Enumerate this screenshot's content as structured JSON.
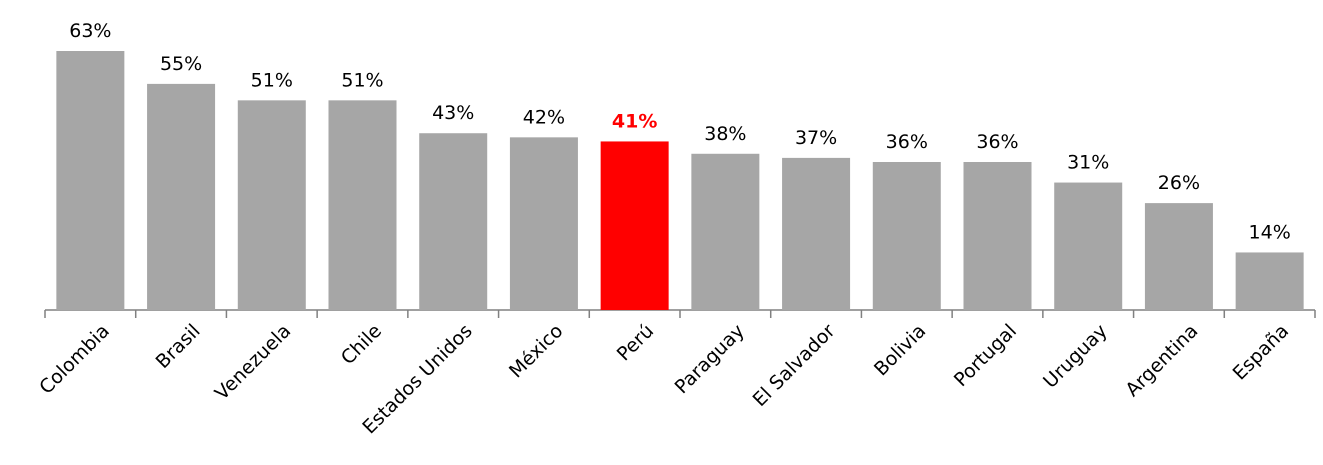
{
  "chart_data": {
    "type": "bar",
    "categories": [
      "Colombia",
      "Brasil",
      "Venezuela",
      "Chile",
      "Estados Unidos",
      "México",
      "Perú",
      "Paraguay",
      "El Salvador",
      "Bolivia",
      "Portugal",
      "Uruguay",
      "Argentina",
      "España"
    ],
    "values": [
      63,
      55,
      51,
      51,
      43,
      42,
      41,
      38,
      37,
      36,
      36,
      31,
      26,
      14
    ],
    "value_labels": [
      "63%",
      "55%",
      "51%",
      "51%",
      "43%",
      "42%",
      "41%",
      "38%",
      "37%",
      "36%",
      "36%",
      "31%",
      "26%",
      "14%"
    ],
    "colors": [
      "#a6a6a6",
      "#a6a6a6",
      "#a6a6a6",
      "#a6a6a6",
      "#a6a6a6",
      "#a6a6a6",
      "#ff0000",
      "#a6a6a6",
      "#a6a6a6",
      "#a6a6a6",
      "#a6a6a6",
      "#a6a6a6",
      "#a6a6a6",
      "#a6a6a6"
    ]
  }
}
